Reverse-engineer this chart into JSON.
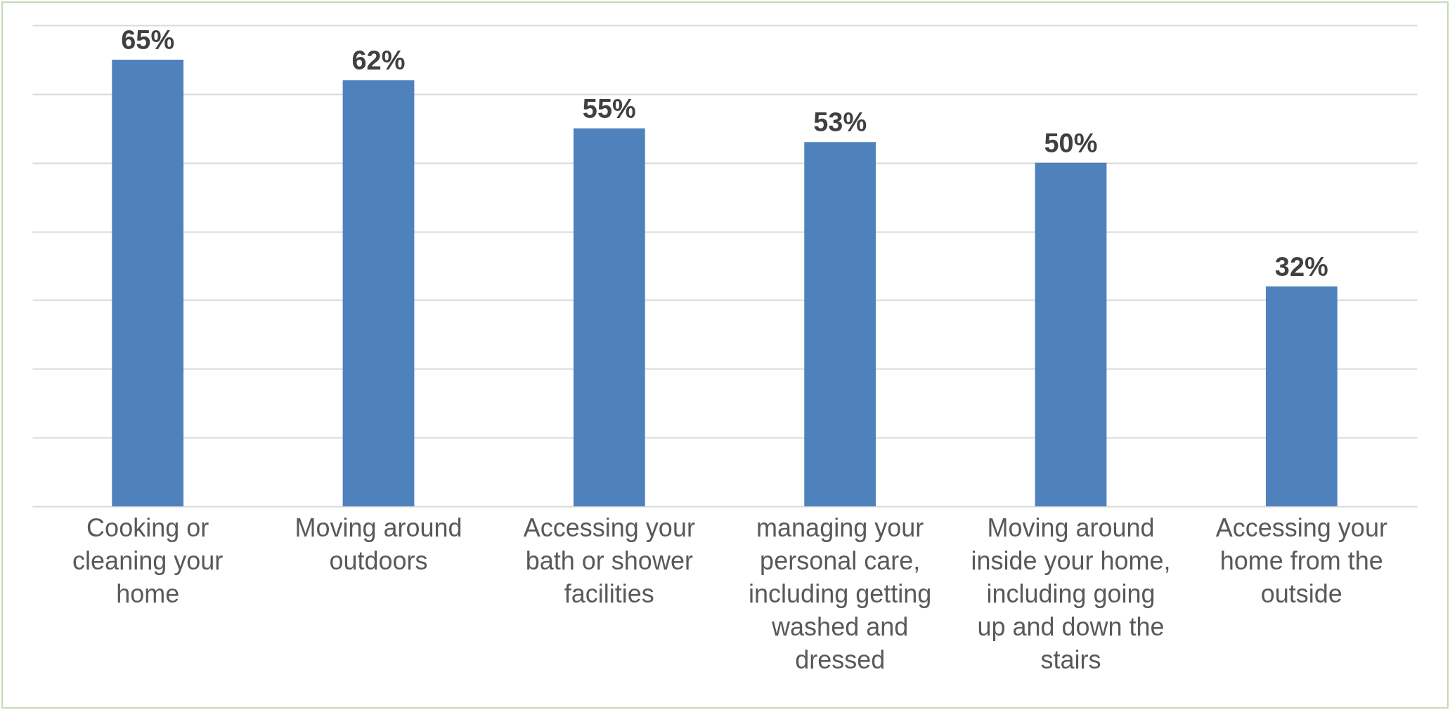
{
  "chart_data": {
    "type": "bar",
    "categories": [
      "Cooking or cleaning your home",
      "Moving around outdoors",
      "Accessing your bath or shower facilities",
      "managing your personal care, including getting washed and dressed",
      "Moving around inside your home, including going up and down the stairs",
      "Accessing your home from the outside"
    ],
    "values": [
      65,
      62,
      55,
      53,
      50,
      32
    ],
    "value_labels": [
      "65%",
      "62%",
      "55%",
      "53%",
      "50%",
      "32%"
    ],
    "color": "#4f81bd",
    "ylim": [
      0,
      70
    ],
    "yticks": [
      {
        "value": 0,
        "label": null
      },
      {
        "value": 10,
        "label": null
      },
      {
        "value": 20,
        "label": null
      },
      {
        "value": 30,
        "label": null
      },
      {
        "value": 40,
        "label": null
      },
      {
        "value": 50,
        "label": null
      },
      {
        "value": 60,
        "label": null
      },
      {
        "value": 70,
        "label": null
      }
    ],
    "tick_labels": "x",
    "grid": "y"
  }
}
